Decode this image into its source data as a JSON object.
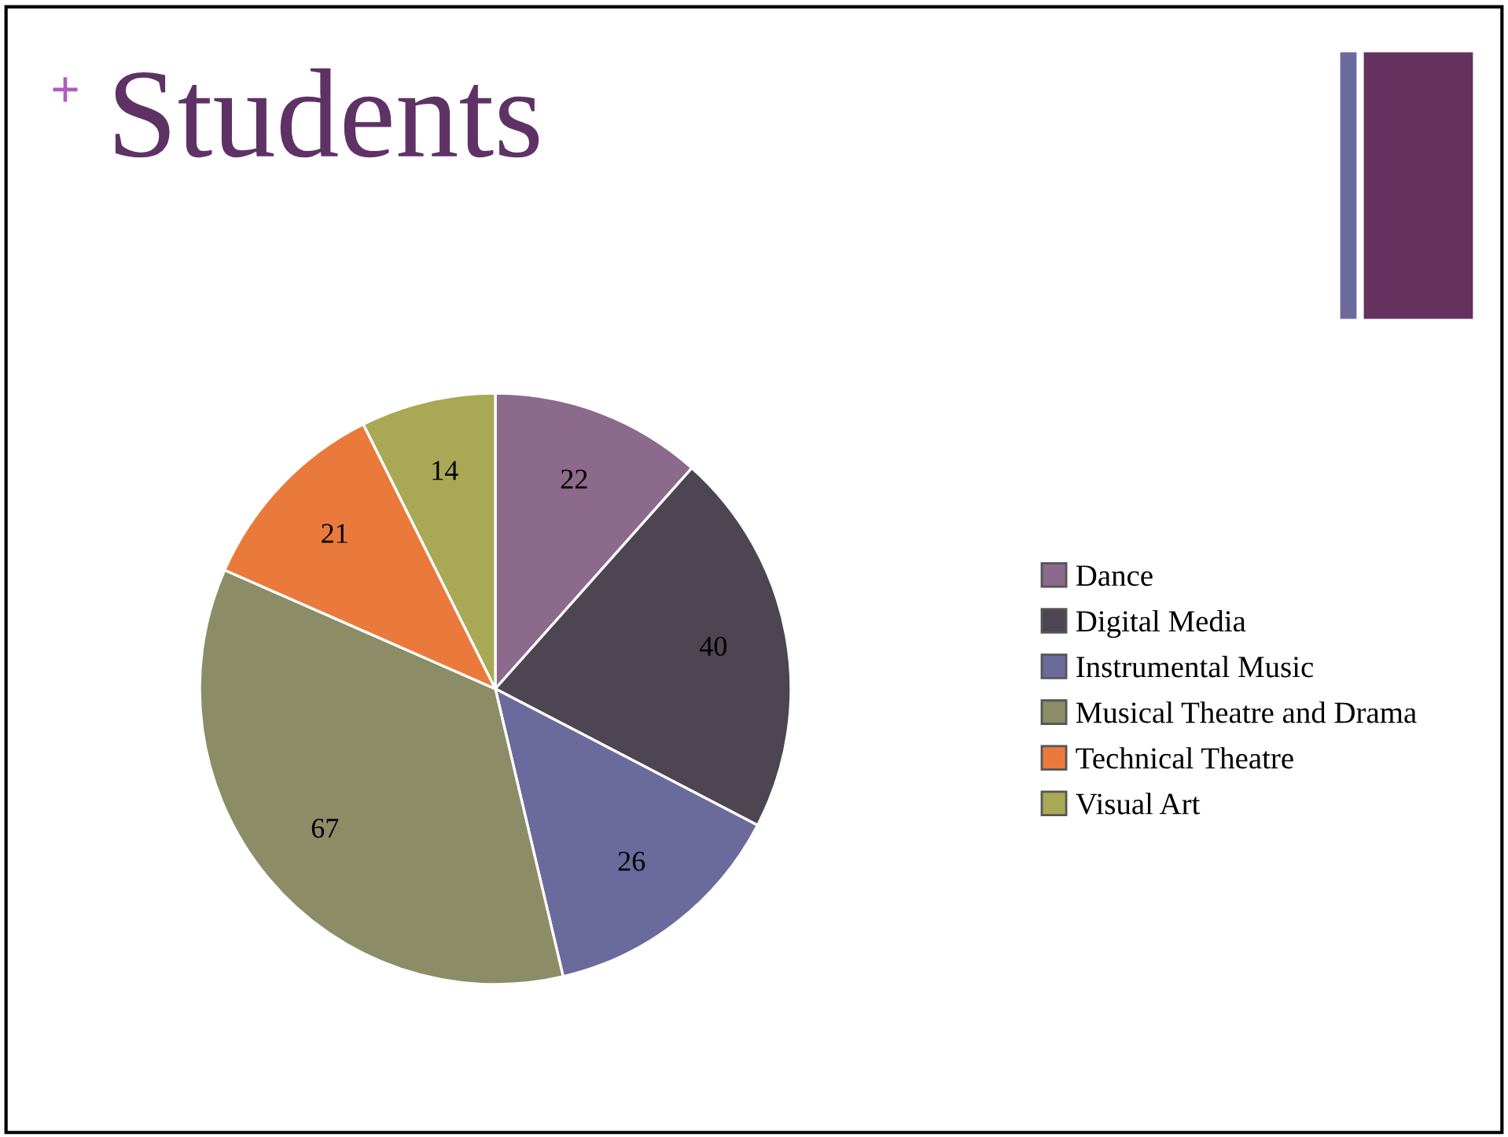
{
  "chart_data": {
    "type": "pie",
    "title": "Students",
    "annotations": [
      "+"
    ],
    "categories": [
      "Dance",
      "Digital Media",
      "Instrumental Music",
      "Musical Theatre and Drama",
      "Technical Theatre",
      "Visual Art"
    ],
    "values": [
      22,
      40,
      26,
      67,
      21,
      14
    ],
    "colors": [
      "#8c6a8c",
      "#4d4552",
      "#6a6a9c",
      "#8c8c66",
      "#ea7a3c",
      "#a9a854"
    ],
    "data_labels": true,
    "legend": "right"
  }
}
